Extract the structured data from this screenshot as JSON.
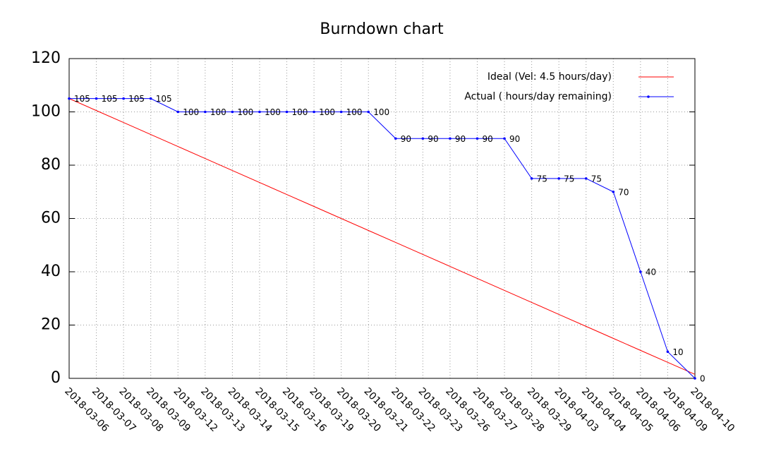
{
  "chart_data": {
    "type": "line",
    "title": "Burndown chart",
    "categories": [
      "2018-03-06",
      "2018-03-07",
      "2018-03-08",
      "2018-03-09",
      "2018-03-12",
      "2018-03-13",
      "2018-03-14",
      "2018-03-15",
      "2018-03-16",
      "2018-03-19",
      "2018-03-20",
      "2018-03-21",
      "2018-03-22",
      "2018-03-23",
      "2018-03-26",
      "2018-03-27",
      "2018-03-28",
      "2018-03-29",
      "2018-04-03",
      "2018-04-04",
      "2018-04-05",
      "2018-04-06",
      "2018-04-09",
      "2018-04-10"
    ],
    "series": [
      {
        "name": "Ideal (Vel: 4.5 hours/day)",
        "color": "#ff0000",
        "values": [
          105,
          100.5,
          96,
          91.5,
          87,
          82.5,
          78,
          73.5,
          69,
          64.5,
          60,
          55.5,
          51,
          46.5,
          42,
          37.5,
          33,
          28.5,
          24,
          19.5,
          15,
          10.5,
          6,
          1.5
        ]
      },
      {
        "name": "Actual ( hours/day remaining)",
        "color": "#0000ff",
        "values": [
          105,
          105,
          105,
          105,
          100,
          100,
          100,
          100,
          100,
          100,
          100,
          100,
          90,
          90,
          90,
          90,
          90,
          75,
          75,
          75,
          70,
          40,
          10,
          0
        ]
      }
    ],
    "ylim": [
      0,
      120
    ],
    "yticks": [
      0,
      20,
      40,
      60,
      80,
      100,
      120
    ],
    "grid": true,
    "legend": "top-right"
  }
}
